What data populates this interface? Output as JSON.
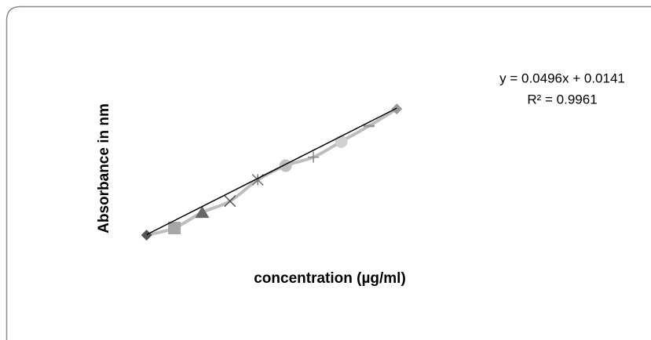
{
  "chart_data": {
    "type": "scatter",
    "x_label": "concentration (µg/ml)",
    "y_label": "Absorbance in  nm",
    "xlim": [
      1,
      21
    ],
    "ylim": [
      0,
      1.1
    ],
    "series": [
      {
        "color": "#bdbdbd",
        "x": [
          2,
          4,
          6,
          8,
          10,
          12,
          14,
          16,
          18,
          20
        ],
        "values": [
          0.11,
          0.16,
          0.27,
          0.35,
          0.5,
          0.6,
          0.66,
          0.77,
          0.88,
          1.0
        ],
        "markers": [
          "diamond",
          "square",
          "triangle",
          "x",
          "star",
          "circle",
          "plus",
          "circle",
          "dash",
          "diamond"
        ],
        "marker_colors": [
          "#555555",
          "#a6a6a6",
          "#666666",
          "#555555",
          "#777777",
          "#c0c0c0",
          "#888888",
          "#d0d0d0",
          "#999999",
          "#999999"
        ]
      }
    ],
    "trendline": {
      "slope": 0.0496,
      "intercept": 0.0141,
      "color": "#000000",
      "equation": "y = 0.0496x + 0.0141",
      "r_squared_label": "R² = 0.9961"
    }
  }
}
